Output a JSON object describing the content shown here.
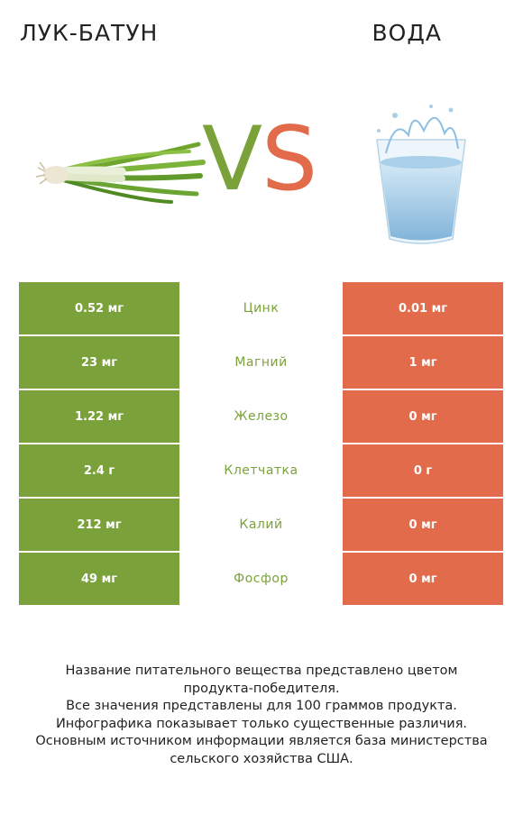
{
  "header": {
    "left_title": "ЛУК-БАТУН",
    "right_title": "ВОДА",
    "vs_v": "V",
    "vs_s": "S"
  },
  "colors": {
    "left_accent": "#7ba23a",
    "right_accent": "#e26b4b"
  },
  "rows": [
    {
      "left": "0.52 мг",
      "nutrient": "Цинк",
      "right": "0.01 мг",
      "winner": "left"
    },
    {
      "left": "23 мг",
      "nutrient": "Магний",
      "right": "1 мг",
      "winner": "left"
    },
    {
      "left": "1.22 мг",
      "nutrient": "Железо",
      "right": "0 мг",
      "winner": "left"
    },
    {
      "left": "2.4 г",
      "nutrient": "Клетчатка",
      "right": "0 г",
      "winner": "left"
    },
    {
      "left": "212 мг",
      "nutrient": "Калий",
      "right": "0 мг",
      "winner": "left"
    },
    {
      "left": "49 мг",
      "nutrient": "Фосфор",
      "right": "0 мг",
      "winner": "left"
    }
  ],
  "footer": {
    "line1": "Название питательного вещества представлено цветом",
    "line2": "продукта-победителя.",
    "line3": "Все значения представлены для 100 граммов продукта.",
    "line4": "Инфографика показывает только существенные различия.",
    "line5": "Основным источником информации является база министерства",
    "line6": "сельского хозяйства США."
  }
}
